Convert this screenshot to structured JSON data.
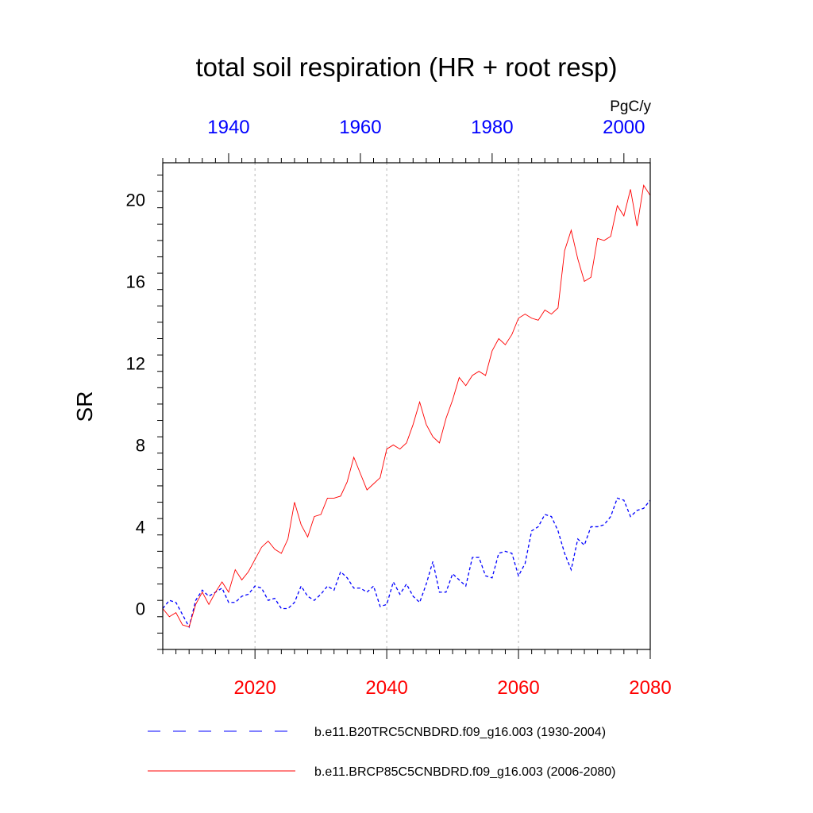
{
  "chart_data": {
    "type": "line",
    "title": "total soil respiration (HR + root resp)",
    "ylabel": "SR",
    "units_label": "PgC/y",
    "ylim": [
      -2,
      21.8
    ],
    "yticks": [
      0,
      4,
      8,
      12,
      16,
      20
    ],
    "x_bottom": {
      "range": [
        2006,
        2080
      ],
      "ticks": [
        2020,
        2040,
        2060,
        2080
      ],
      "tick_labels": [
        "2020",
        "2040",
        "2060",
        "2080"
      ],
      "color": "#ff0000"
    },
    "x_top": {
      "range": [
        1930,
        2004
      ],
      "ticks": [
        1940,
        1960,
        1980,
        2000
      ],
      "tick_labels": [
        "1940",
        "1960",
        "1980",
        "2000"
      ],
      "color": "#0000ff"
    },
    "gridlines_x": [
      2020,
      2040,
      2060
    ],
    "series": [
      {
        "name": "b.e11.B20TRC5CNBDRD.f09_g16.003 (1930-2004)",
        "style": "dashed",
        "color": "#0000ff",
        "axis": "top",
        "x_start": 1930,
        "values": [
          0.0,
          0.4,
          0.3,
          -0.3,
          -0.9,
          0.4,
          0.9,
          0.6,
          0.8,
          1.0,
          0.3,
          0.3,
          0.6,
          0.7,
          1.1,
          1.0,
          0.4,
          0.5,
          0.0,
          0.0,
          0.3,
          1.1,
          0.6,
          0.4,
          0.7,
          1.1,
          0.9,
          1.8,
          1.5,
          1.0,
          1.0,
          0.8,
          1.1,
          0.1,
          0.2,
          1.3,
          0.7,
          1.2,
          0.6,
          0.3,
          1.2,
          2.3,
          0.8,
          0.8,
          1.7,
          1.4,
          1.1,
          2.5,
          2.5,
          1.6,
          1.5,
          2.7,
          2.8,
          2.7,
          1.6,
          2.2,
          3.8,
          4.0,
          4.6,
          4.5,
          3.8,
          2.7,
          1.9,
          3.4,
          3.1,
          4.0,
          4.0,
          4.1,
          4.5,
          5.4,
          5.3,
          4.5,
          4.8,
          4.9,
          5.3
        ]
      },
      {
        "name": "b.e11.BRCP85C5CNBDRD.f09_g16.003 (2006-2080)",
        "style": "solid",
        "color": "#ff0000",
        "axis": "bottom",
        "x_start": 2006,
        "values": [
          0.0,
          -0.4,
          -0.2,
          -0.8,
          -0.9,
          0.2,
          0.8,
          0.2,
          0.8,
          1.3,
          0.8,
          1.9,
          1.4,
          1.8,
          2.4,
          3.0,
          3.3,
          2.9,
          2.7,
          3.4,
          5.2,
          4.1,
          3.5,
          4.5,
          4.6,
          5.4,
          5.4,
          5.5,
          6.2,
          7.4,
          6.6,
          5.8,
          6.1,
          6.4,
          7.8,
          8.0,
          7.8,
          8.1,
          9.0,
          10.1,
          9.0,
          8.4,
          8.1,
          9.3,
          10.2,
          11.3,
          10.9,
          11.4,
          11.6,
          11.4,
          12.6,
          13.2,
          12.9,
          13.4,
          14.2,
          14.4,
          14.2,
          14.1,
          14.6,
          14.4,
          14.7,
          17.5,
          18.5,
          17.1,
          16.0,
          16.2,
          18.1,
          18.0,
          18.2,
          19.7,
          19.2,
          20.5,
          18.7,
          20.7,
          20.2
        ]
      }
    ]
  }
}
